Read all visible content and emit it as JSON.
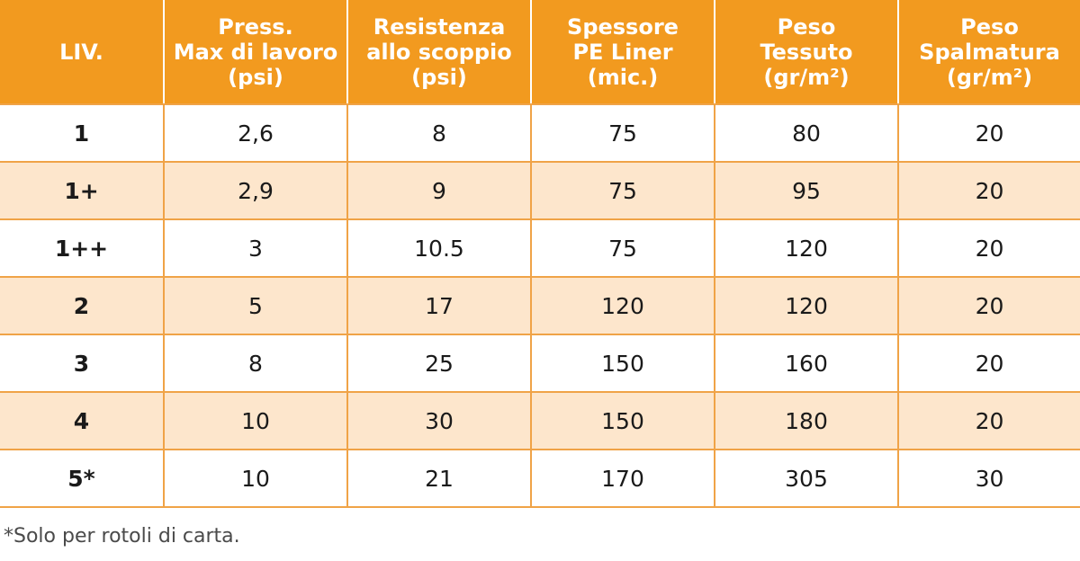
{
  "table": {
    "headers": [
      {
        "lines": [
          "LIV."
        ]
      },
      {
        "lines": [
          "Press.",
          "Max di lavoro",
          "(psi)"
        ]
      },
      {
        "lines": [
          "Resistenza",
          "allo scoppio",
          "(psi)"
        ]
      },
      {
        "lines": [
          "Spessore",
          "PE Liner",
          "(mic.)"
        ]
      },
      {
        "lines": [
          "Peso",
          "Tessuto",
          "(gr/m²)"
        ]
      },
      {
        "lines": [
          "Peso",
          "Spalmatura",
          "(gr/m²)"
        ]
      }
    ],
    "rows": [
      [
        "1",
        "2,6",
        "8",
        "75",
        "80",
        "20"
      ],
      [
        "1+",
        "2,9",
        "9",
        "75",
        "95",
        "20"
      ],
      [
        "1++",
        "3",
        "10.5",
        "75",
        "120",
        "20"
      ],
      [
        "2",
        "5",
        "17",
        "120",
        "120",
        "20"
      ],
      [
        "3",
        "8",
        "25",
        "150",
        "160",
        "20"
      ],
      [
        "4",
        "10",
        "30",
        "150",
        "180",
        "20"
      ],
      [
        "5*",
        "10",
        "21",
        "170",
        "305",
        "30"
      ]
    ]
  },
  "footnote": "*Solo per rotoli di carta.",
  "colors": {
    "header_bg": "#f29a1f",
    "header_text": "#ffffff",
    "stripe_bg": "#fde6cc",
    "grid_line": "#f0a347"
  }
}
